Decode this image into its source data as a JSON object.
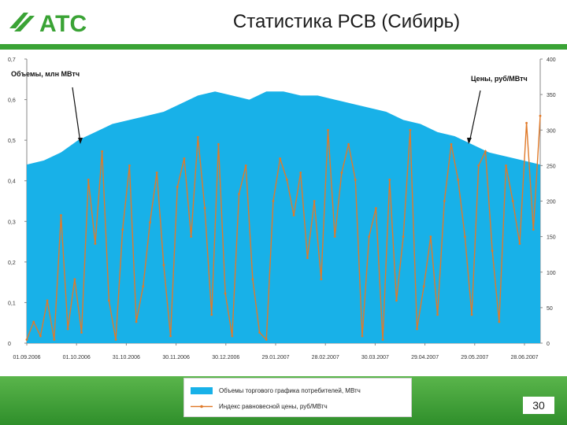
{
  "header": {
    "logo_text": "АТС",
    "title": "Статистика РСВ (Сибирь)"
  },
  "colors": {
    "brand_green": "#3aa335",
    "volume_fill": "#18b1e8",
    "price_line": "#e07a2a"
  },
  "chart_data": {
    "type": "area+line",
    "annotations": {
      "left": "Объемы, млн МВтч",
      "right": "Цены, руб/МВтч"
    },
    "x_labels": [
      "01.09.2006",
      "01.10.2006",
      "31.10.2006",
      "30.11.2006",
      "30.12.2006",
      "29.01.2007",
      "28.02.2007",
      "30.03.2007",
      "29.04.2007",
      "29.05.2007",
      "28.06.2007"
    ],
    "y_left": {
      "ylim": [
        0,
        0.7
      ],
      "ticks": [
        "0",
        "0,1",
        "0,2",
        "0,3",
        "0,4",
        "0,5",
        "0,6",
        "0,7"
      ]
    },
    "y_right": {
      "ylim": [
        0,
        400
      ],
      "ticks": [
        "0",
        "50",
        "100",
        "150",
        "200",
        "250",
        "300",
        "350",
        "400"
      ]
    },
    "series": [
      {
        "name": "Объемы торгового графика потребителей, МВтч",
        "kind": "area",
        "axis": "left",
        "x_index": [
          0,
          10,
          20,
          30,
          40,
          50,
          60,
          70,
          80,
          90,
          100,
          110,
          120,
          130,
          140,
          150,
          160,
          170,
          180,
          190,
          200,
          210,
          220,
          230,
          240,
          250,
          260,
          270,
          280,
          290,
          300
        ],
        "values": [
          0.44,
          0.45,
          0.47,
          0.5,
          0.52,
          0.54,
          0.55,
          0.56,
          0.57,
          0.59,
          0.61,
          0.62,
          0.61,
          0.6,
          0.62,
          0.62,
          0.61,
          0.61,
          0.6,
          0.59,
          0.58,
          0.57,
          0.55,
          0.54,
          0.52,
          0.51,
          0.49,
          0.47,
          0.46,
          0.45,
          0.44
        ]
      },
      {
        "name": "Индекс равновесной цены, руб/МВтч",
        "kind": "line",
        "axis": "right",
        "x_index": [
          0,
          4,
          8,
          12,
          16,
          20,
          24,
          28,
          32,
          36,
          40,
          44,
          48,
          52,
          56,
          60,
          64,
          68,
          72,
          76,
          80,
          84,
          88,
          92,
          96,
          100,
          104,
          108,
          112,
          116,
          120,
          124,
          128,
          132,
          136,
          140,
          144,
          148,
          152,
          156,
          160,
          164,
          168,
          172,
          176,
          180,
          184,
          188,
          192,
          196,
          200,
          204,
          208,
          212,
          216,
          220,
          224,
          228,
          232,
          236,
          240,
          244,
          248,
          252,
          256,
          260,
          264,
          268,
          272,
          276,
          280,
          284,
          288,
          292,
          296,
          300
        ],
        "values": [
          5,
          30,
          10,
          60,
          5,
          180,
          20,
          90,
          15,
          230,
          140,
          270,
          60,
          5,
          160,
          250,
          30,
          80,
          170,
          240,
          110,
          10,
          220,
          260,
          150,
          290,
          190,
          40,
          280,
          70,
          10,
          210,
          250,
          90,
          15,
          5,
          200,
          260,
          230,
          180,
          240,
          120,
          200,
          90,
          300,
          150,
          240,
          280,
          230,
          10,
          150,
          190,
          5,
          230,
          60,
          150,
          300,
          20,
          80,
          150,
          40,
          200,
          280,
          230,
          150,
          40,
          250,
          270,
          130,
          30,
          250,
          200,
          140,
          310,
          160,
          320
        ]
      }
    ]
  },
  "legend": {
    "items": [
      "Объемы торгового графика потребителей, МВтч",
      "Индекс равновесной цены, руб/МВтч"
    ]
  },
  "footer": {
    "page_number": "30"
  }
}
